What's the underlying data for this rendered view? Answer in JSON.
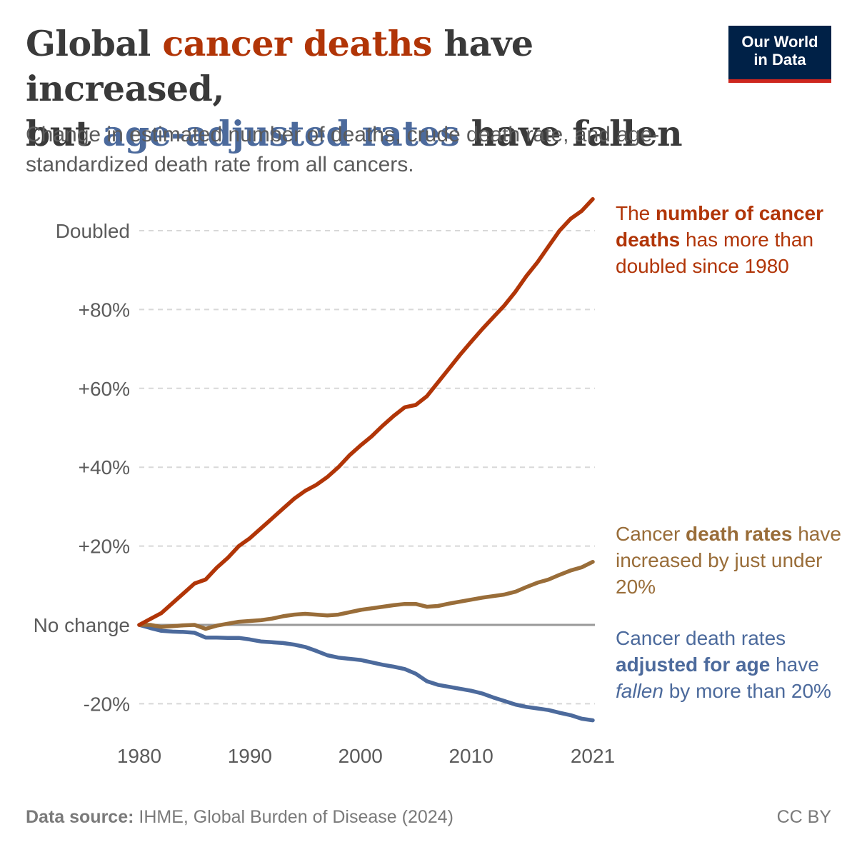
{
  "title": {
    "part1": "Global ",
    "red": "cancer deaths",
    "part2": " have increased,",
    "part3": "but ",
    "blue": "age-adjusted rates",
    "part4": " have fallen"
  },
  "subtitle": "Change in estimated number of deaths, crude death rate, and age-standardized death rate from all cancers.",
  "logo": {
    "line1": "Our World",
    "line2": "in Data"
  },
  "annotations": {
    "deaths": {
      "pre": "The ",
      "bold": "number of cancer deaths",
      "post": " has more than doubled since 1980"
    },
    "crude": {
      "pre": "Cancer ",
      "bold": "death rates",
      "post": " have increased by just under 20%"
    },
    "age": {
      "pre": "Cancer death rates ",
      "bold": "adjusted for age",
      "mid": " have ",
      "italic": "fallen",
      "post": " by more than 20%"
    }
  },
  "footer": {
    "label": "Data source:",
    "text": " IHME, Global Burden of Disease (2024)",
    "license": "CC BY"
  },
  "colors": {
    "deaths": "#b13507",
    "crude": "#996d39",
    "age": "#4c6a9c",
    "grid": "#d8d8d8",
    "zero": "#999999"
  },
  "chart_data": {
    "type": "line",
    "x": [
      1980,
      1981,
      1982,
      1983,
      1984,
      1985,
      1986,
      1987,
      1988,
      1989,
      1990,
      1991,
      1992,
      1993,
      1994,
      1995,
      1996,
      1997,
      1998,
      1999,
      2000,
      2001,
      2002,
      2003,
      2004,
      2005,
      2006,
      2007,
      2008,
      2009,
      2010,
      2011,
      2012,
      2013,
      2014,
      2015,
      2016,
      2017,
      2018,
      2019,
      2020,
      2021
    ],
    "xticks": [
      {
        "value": 1980,
        "label": "1980"
      },
      {
        "value": 1990,
        "label": "1990"
      },
      {
        "value": 2000,
        "label": "2000"
      },
      {
        "value": 2010,
        "label": "2010"
      },
      {
        "value": 2021,
        "label": "2021"
      }
    ],
    "yticks": [
      {
        "value": -20,
        "label": "-20%"
      },
      {
        "value": 0,
        "label": "No change"
      },
      {
        "value": 20,
        "label": "+20%"
      },
      {
        "value": 40,
        "label": "+40%"
      },
      {
        "value": 60,
        "label": "+60%"
      },
      {
        "value": 80,
        "label": "+80%"
      },
      {
        "value": 100,
        "label": "Doubled"
      }
    ],
    "ylim": [
      -25,
      106
    ],
    "xlim": [
      1980,
      2021
    ],
    "grid": true,
    "series": [
      {
        "key": "deaths",
        "values": [
          0,
          1.5,
          3,
          5.5,
          8,
          10.5,
          11.5,
          14.5,
          17,
          20,
          22,
          24.5,
          27,
          29.5,
          32,
          34,
          35.5,
          37.5,
          40,
          43,
          45.5,
          47.8,
          50.5,
          53,
          55.2,
          55.8,
          58,
          61.5,
          65,
          68.5,
          71.8,
          75,
          78,
          81,
          84.5,
          88.5,
          92,
          96,
          100,
          103,
          105,
          108
        ]
      },
      {
        "key": "crude",
        "values": [
          0,
          0,
          -0.5,
          -0.3,
          -0.1,
          0,
          -1,
          -0.2,
          0.3,
          0.8,
          1,
          1.2,
          1.6,
          2.2,
          2.6,
          2.8,
          2.6,
          2.4,
          2.6,
          3.2,
          3.8,
          4.2,
          4.6,
          5,
          5.3,
          5.3,
          4.6,
          4.8,
          5.4,
          5.9,
          6.4,
          6.9,
          7.3,
          7.7,
          8.4,
          9.6,
          10.7,
          11.5,
          12.7,
          13.8,
          14.6,
          16
        ]
      },
      {
        "key": "age",
        "values": [
          0,
          -0.8,
          -1.5,
          -1.7,
          -1.8,
          -2,
          -3.2,
          -3.2,
          -3.3,
          -3.3,
          -3.7,
          -4.2,
          -4.4,
          -4.6,
          -5,
          -5.6,
          -6.6,
          -7.7,
          -8.3,
          -8.6,
          -8.9,
          -9.5,
          -10.1,
          -10.6,
          -11.2,
          -12.4,
          -14.3,
          -15.2,
          -15.7,
          -16.2,
          -16.7,
          -17.4,
          -18.4,
          -19.3,
          -20.2,
          -20.8,
          -21.2,
          -21.6,
          -22.3,
          -22.9,
          -23.8,
          -24.2
        ]
      }
    ]
  }
}
